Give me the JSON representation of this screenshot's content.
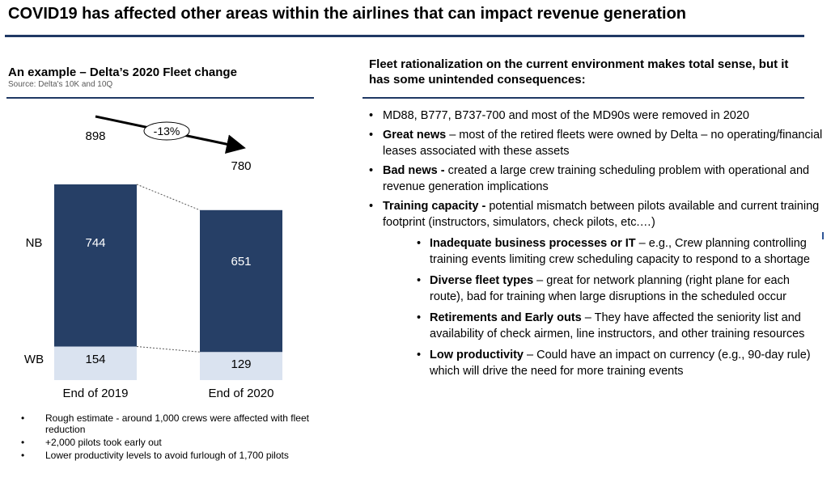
{
  "title": "COVID19 has affected other areas within the airlines that can impact revenue generation",
  "left": {
    "title": "An example – Delta’s 2020 Fleet change",
    "source": "Source: Delta's 10K and 10Q",
    "notes": [
      "Rough estimate - around 1,000 crews were affected with fleet reduction",
      "+2,000 pilots took early out",
      "Lower productivity levels to avoid furlough of 1,700 pilots"
    ]
  },
  "chart_data": {
    "type": "bar",
    "stacked": true,
    "categories": [
      "End of 2019",
      "End of 2020"
    ],
    "series": [
      {
        "name": "WB",
        "values": [
          154,
          129
        ],
        "color": "#dae3f0"
      },
      {
        "name": "NB",
        "values": [
          744,
          651
        ],
        "color": "#263f66"
      }
    ],
    "totals": [
      "898",
      "780"
    ],
    "change_label": "-13%",
    "segment_labels": {
      "nb": [
        "744",
        "651"
      ],
      "wb": [
        "154",
        "129"
      ]
    },
    "row_labels": [
      "NB",
      "WB"
    ]
  },
  "right": {
    "heading": "Fleet rationalization on the current environment makes total sense, but it has some unintended consequences:",
    "b1": {
      "text": "MD88, B777, B737-700 and most of the MD90s were removed in 2020"
    },
    "b2": {
      "bold": "Great news",
      "text": " – most of the retired fleets were owned by Delta – no operating/financial leases associated with these assets"
    },
    "b3": {
      "bold": "Bad news -",
      "text": "  created a large crew training scheduling problem with operational and revenue generation implications"
    },
    "b4": {
      "bold": "Training capacity -",
      "text": " potential mismatch between pilots available and current training footprint (instructors, simulators, check pilots, etc.…)"
    },
    "s1": {
      "bold": "Inadequate business processes or IT",
      "text": " – e.g., Crew planning controlling training events limiting crew scheduling capacity to respond to a shortage"
    },
    "s2": {
      "bold": "Diverse fleet types",
      "text": " – great for network planning (right plane for each route), bad for training when large disruptions in the scheduled occur"
    },
    "s3": {
      "bold": "Retirements and Early outs",
      "text": " – They have affected the seniority list and availability of check airmen, line instructors, and other training resources"
    },
    "s4": {
      "bold": "Low productivity",
      "text": " – Could have an impact on currency (e.g., 90-day rule) which will drive the need for more training events"
    }
  },
  "colors": {
    "accent": "#1f3864",
    "nb": "#263f66",
    "wb": "#dae3f0"
  }
}
